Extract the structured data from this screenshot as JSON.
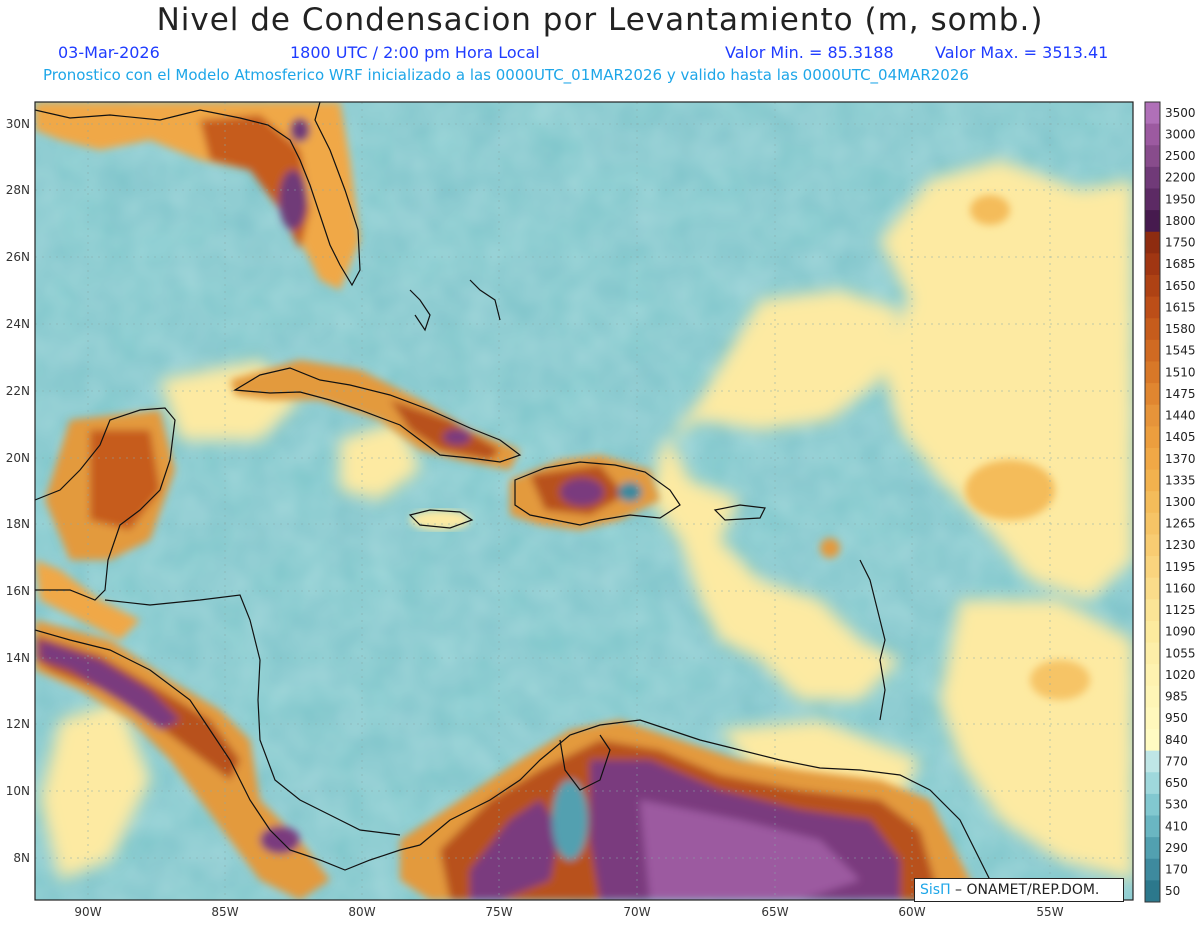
{
  "header": {
    "title": "Nivel de Condensacion por Levantamiento (m, somb.)",
    "date": "03-Mar-2026",
    "time": "1800 UTC / 2:00 pm Hora Local",
    "min_label": "Valor Min. = 85.3188",
    "max_label": "Valor Max. = 3513.41",
    "forecast_note": "Pronostico con el Modelo Atmosferico WRF inicializado a las 0000UTC_01MAR2026 y valido hasta las  0000UTC_04MAR2026"
  },
  "axes": {
    "lat_labels": [
      "30N",
      "28N",
      "26N",
      "24N",
      "22N",
      "20N",
      "18N",
      "16N",
      "14N",
      "12N",
      "10N",
      "8N"
    ],
    "lon_labels": [
      "90W",
      "85W",
      "80W",
      "75W",
      "70W",
      "65W",
      "60W",
      "55W"
    ]
  },
  "colorbar": {
    "labels": [
      "3500",
      "3000",
      "2500",
      "2200",
      "1950",
      "1800",
      "1750",
      "1685",
      "1650",
      "1615",
      "1580",
      "1545",
      "1510",
      "1475",
      "1440",
      "1405",
      "1370",
      "1335",
      "1300",
      "1265",
      "1230",
      "1195",
      "1160",
      "1125",
      "1090",
      "1055",
      "1020",
      "985",
      "950",
      "840",
      "770",
      "650",
      "530",
      "410",
      "290",
      "170",
      "50"
    ],
    "colors": [
      "#b070b8",
      "#9c5aa0",
      "#884c8c",
      "#703a78",
      "#5c2a64",
      "#461a4e",
      "#8e2c10",
      "#a03612",
      "#ae4214",
      "#bc4e18",
      "#c65c1c",
      "#d06a22",
      "#d87828",
      "#e08630",
      "#e6943a",
      "#ec9e3e",
      "#f0a846",
      "#f2b24e",
      "#f4bc5a",
      "#f6c466",
      "#f8cc72",
      "#f9d47e",
      "#fadc8a",
      "#fbe496",
      "#fcea9e",
      "#fdeea8",
      "#fef2b0",
      "#fef5b6",
      "#fff8bc",
      "#fffbc2",
      "#bfe6e6",
      "#9fd8dc",
      "#82c8d0",
      "#6ab6c2",
      "#52a0b0",
      "#3e8a9e",
      "#2c788c"
    ]
  },
  "credit": {
    "logo": "SisΠ",
    "text": " – ONAMET/REP.DOM."
  },
  "colors": {
    "ocean": "#7fc8cc",
    "ocean_dark": "#5fa9b5",
    "ocean_light": "#a9e0e2",
    "land_dry": "#fdeaa2",
    "land_orange": "#e39a3c",
    "land_brown": "#b8511e",
    "land_purple": "#7a3a7e",
    "title_blue": "#1f3cff",
    "subtitle_cyan": "#1ea6e8"
  }
}
